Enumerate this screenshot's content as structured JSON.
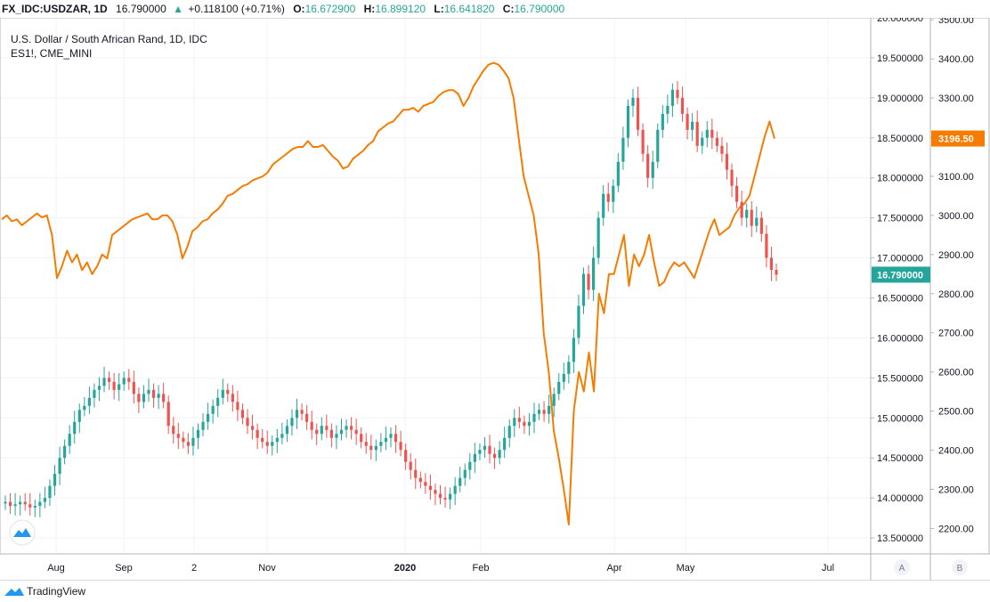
{
  "header": {
    "symbol": "FX_IDC:USDZAR, 1D",
    "price": "16.790000",
    "change_arrow": "▲",
    "change": "+0.118100 (+0.71%)",
    "open_label": "O:",
    "open": "16.672900",
    "high_label": "H:",
    "high": "16.899120",
    "low_label": "L:",
    "low": "16.641820",
    "close_label": "C:",
    "close": "16.790000"
  },
  "legend": {
    "title": "U.S. Dollar / South African Rand, 1D, IDC",
    "overlay": "ES1!, CME_MINI"
  },
  "footer": {
    "brand": "TradingView"
  },
  "colors": {
    "up": "#26a69a",
    "down": "#ef5350",
    "overlay": "#f57c00",
    "grid": "#f0f3fa",
    "axis": "#b2b5be",
    "text": "#131722"
  },
  "chart_data": {
    "type": "candlestick+line",
    "title": "U.S. Dollar / South African Rand, 1D, IDC",
    "x_axis": {
      "labels": [
        "Aug",
        "Sep",
        "2",
        "Nov",
        "2020",
        "Feb",
        "Apr",
        "May",
        "Jul"
      ]
    },
    "y_axis_right": {
      "name": "USDZAR",
      "range": [
        13.3,
        20.0
      ],
      "ticks": [
        "20.000000",
        "19.500000",
        "19.000000",
        "18.500000",
        "18.000000",
        "17.500000",
        "17.000000",
        "16.500000",
        "16.000000",
        "15.500000",
        "15.000000",
        "14.500000",
        "14.000000",
        "13.500000"
      ],
      "last_value_label": "16.790000"
    },
    "y_axis_overlay": {
      "name": "ES1!",
      "range": [
        2135,
        3505
      ],
      "ticks": [
        "3500.00",
        "3400.00",
        "3300.00",
        "3200.00",
        "3100.00",
        "3000.00",
        "2900.00",
        "2800.00",
        "2700.00",
        "2600.00",
        "2500.00",
        "2400.00",
        "2300.00",
        "2200.00"
      ],
      "last_value_label": "3196.50"
    },
    "series": [
      {
        "name": "USDZAR",
        "kind": "candles",
        "close": [
          13.95,
          13.9,
          13.92,
          13.95,
          13.92,
          13.88,
          13.9,
          13.95,
          14.0,
          14.15,
          14.3,
          14.5,
          14.65,
          14.8,
          14.95,
          15.1,
          15.15,
          15.25,
          15.35,
          15.4,
          15.5,
          15.45,
          15.35,
          15.42,
          15.5,
          15.45,
          15.3,
          15.2,
          15.3,
          15.35,
          15.25,
          15.3,
          15.2,
          14.9,
          14.8,
          14.75,
          14.7,
          14.65,
          14.75,
          14.85,
          14.95,
          15.05,
          15.15,
          15.25,
          15.35,
          15.3,
          15.2,
          15.1,
          15.0,
          14.9,
          14.85,
          14.75,
          14.7,
          14.65,
          14.7,
          14.75,
          14.8,
          14.9,
          15.0,
          15.1,
          15.05,
          14.95,
          14.85,
          14.8,
          14.9,
          14.85,
          14.75,
          14.8,
          14.85,
          14.9,
          14.85,
          14.8,
          14.7,
          14.65,
          14.6,
          14.65,
          14.7,
          14.75,
          14.8,
          14.7,
          14.6,
          14.45,
          14.35,
          14.25,
          14.2,
          14.15,
          14.1,
          14.05,
          14.0,
          13.98,
          14.05,
          14.15,
          14.25,
          14.35,
          14.45,
          14.55,
          14.6,
          14.65,
          14.55,
          14.5,
          14.6,
          14.75,
          14.9,
          15.0,
          14.95,
          14.9,
          14.95,
          15.05,
          15.1,
          15.05,
          15.15,
          15.3,
          15.45,
          15.55,
          15.7,
          16.0,
          16.4,
          16.8,
          16.6,
          17.0,
          17.5,
          17.8,
          17.7,
          17.9,
          18.2,
          18.5,
          18.9,
          19.0,
          18.6,
          18.3,
          18.0,
          18.2,
          18.6,
          18.8,
          18.9,
          19.1,
          19.0,
          18.8,
          18.6,
          18.7,
          18.4,
          18.5,
          18.6,
          18.5,
          18.4,
          18.3,
          18.1,
          17.9,
          17.7,
          17.5,
          17.6,
          17.4,
          17.5,
          17.3,
          17.0,
          16.85,
          16.79
        ]
      },
      {
        "name": "ES1!",
        "kind": "line",
        "values": [
          2990,
          3000,
          2985,
          2990,
          2975,
          2985,
          2995,
          3005,
          2995,
          3000,
          2950,
          2840,
          2870,
          2910,
          2880,
          2900,
          2860,
          2880,
          2850,
          2870,
          2900,
          2890,
          2950,
          2960,
          2970,
          2980,
          2990,
          2995,
          3000,
          3005,
          2990,
          2990,
          3000,
          3000,
          2985,
          2950,
          2890,
          2920,
          2960,
          2970,
          2985,
          2990,
          3005,
          3015,
          3030,
          3050,
          3055,
          3065,
          3075,
          3080,
          3090,
          3095,
          3100,
          3110,
          3130,
          3140,
          3150,
          3160,
          3170,
          3175,
          3175,
          3190,
          3175,
          3175,
          3180,
          3165,
          3150,
          3140,
          3120,
          3125,
          3145,
          3155,
          3165,
          3180,
          3190,
          3215,
          3225,
          3235,
          3240,
          3255,
          3270,
          3270,
          3275,
          3265,
          3280,
          3285,
          3290,
          3305,
          3315,
          3320,
          3320,
          3310,
          3280,
          3300,
          3330,
          3350,
          3370,
          3385,
          3390,
          3385,
          3370,
          3350,
          3300,
          3200,
          3100,
          3050,
          3000,
          2900,
          2700,
          2600,
          2450,
          2380,
          2300,
          2210,
          2500,
          2600,
          2550,
          2650,
          2550,
          2800,
          2750,
          2850,
          2850,
          2900,
          2950,
          2820,
          2900,
          2870,
          2900,
          2950,
          2880,
          2820,
          2830,
          2860,
          2880,
          2870,
          2880,
          2860,
          2840,
          2880,
          2920,
          2960,
          2990,
          2950,
          2960,
          2970,
          3000,
          3020,
          3030,
          3050,
          3100,
          3150,
          3200,
          3240,
          3196.5
        ]
      }
    ]
  }
}
